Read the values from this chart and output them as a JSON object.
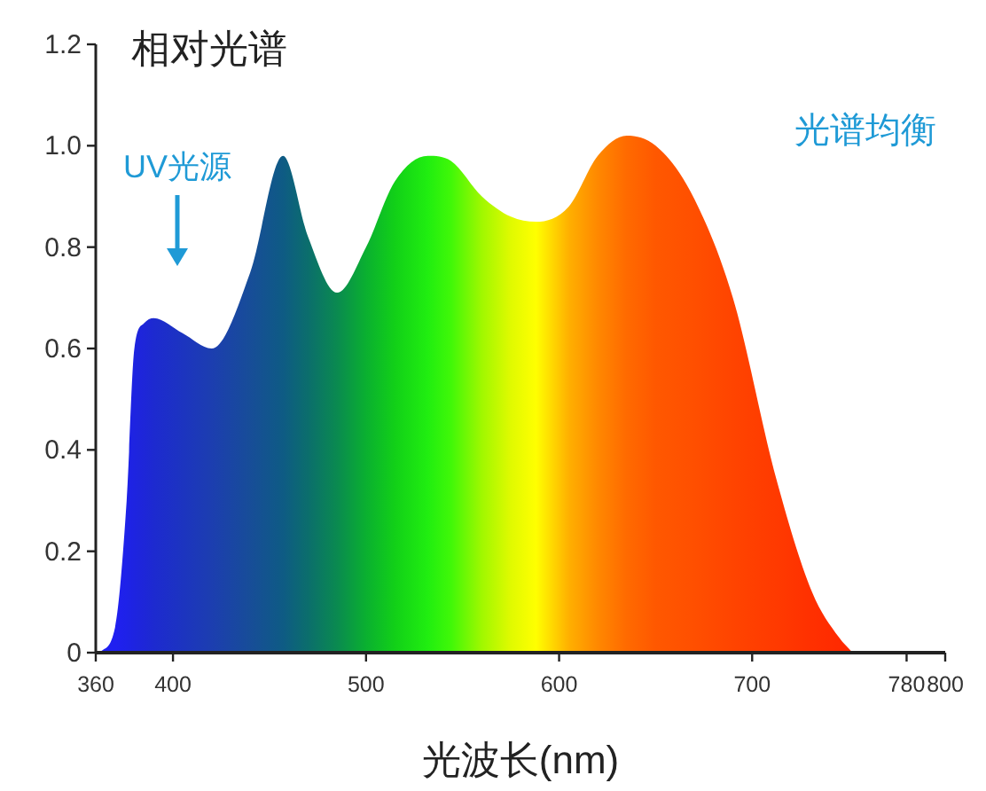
{
  "chart_data": {
    "type": "area",
    "title": "相对光谱",
    "xlabel": "光波长(nm)",
    "xlim": [
      360,
      800
    ],
    "xticks": [
      360,
      400,
      500,
      600,
      700,
      780,
      800
    ],
    "ylim": [
      0,
      1.2
    ],
    "yticks": [
      0,
      0.2,
      0.4,
      0.6,
      {
        "value": 0.8,
        "label": "0.8"
      },
      {
        "value": 1,
        "label": "1.0"
      },
      1.2
    ],
    "grid": false,
    "annotations": [
      "UV光源",
      "光谱均衡"
    ],
    "series": [
      {
        "x": [
          362,
          370,
          376,
          380,
          385,
          390,
          405,
          420,
          440,
          457,
          470,
          485,
          500,
          515,
          532,
          544,
          560,
          575,
          588,
          605,
          620,
          635,
          650,
          668,
          690,
          712,
          731,
          745,
          752
        ],
        "values": [
          0,
          0.05,
          0.3,
          0.6,
          0.65,
          0.66,
          0.63,
          0.6,
          0.75,
          0.98,
          0.82,
          0.71,
          0.8,
          0.93,
          0.98,
          0.97,
          0.9,
          0.86,
          0.85,
          0.88,
          0.98,
          1.02,
          1.0,
          0.91,
          0.7,
          0.35,
          0.12,
          0.03,
          0
        ],
        "colors": [
          "#2020f0",
          "#2020f0",
          "#1e22e8",
          "#1e24e0",
          "#1e26d8",
          "#1d2ad0",
          "#1c34c0",
          "#1c3eb0",
          "#174d98",
          "#0e5b84",
          "#0b6e6c",
          "#0a8a50",
          "#0ab030",
          "#12d018",
          "#20ee10",
          "#40f808",
          "#a0f800",
          "#e0fa00",
          "#ffff00",
          "#ffb000",
          "#ff8800",
          "#ff6a00",
          "#ff5800",
          "#ff5000",
          "#ff4400",
          "#ff3a00",
          "#ff3000",
          "#ff2a00",
          "#ff2800"
        ]
      }
    ]
  }
}
